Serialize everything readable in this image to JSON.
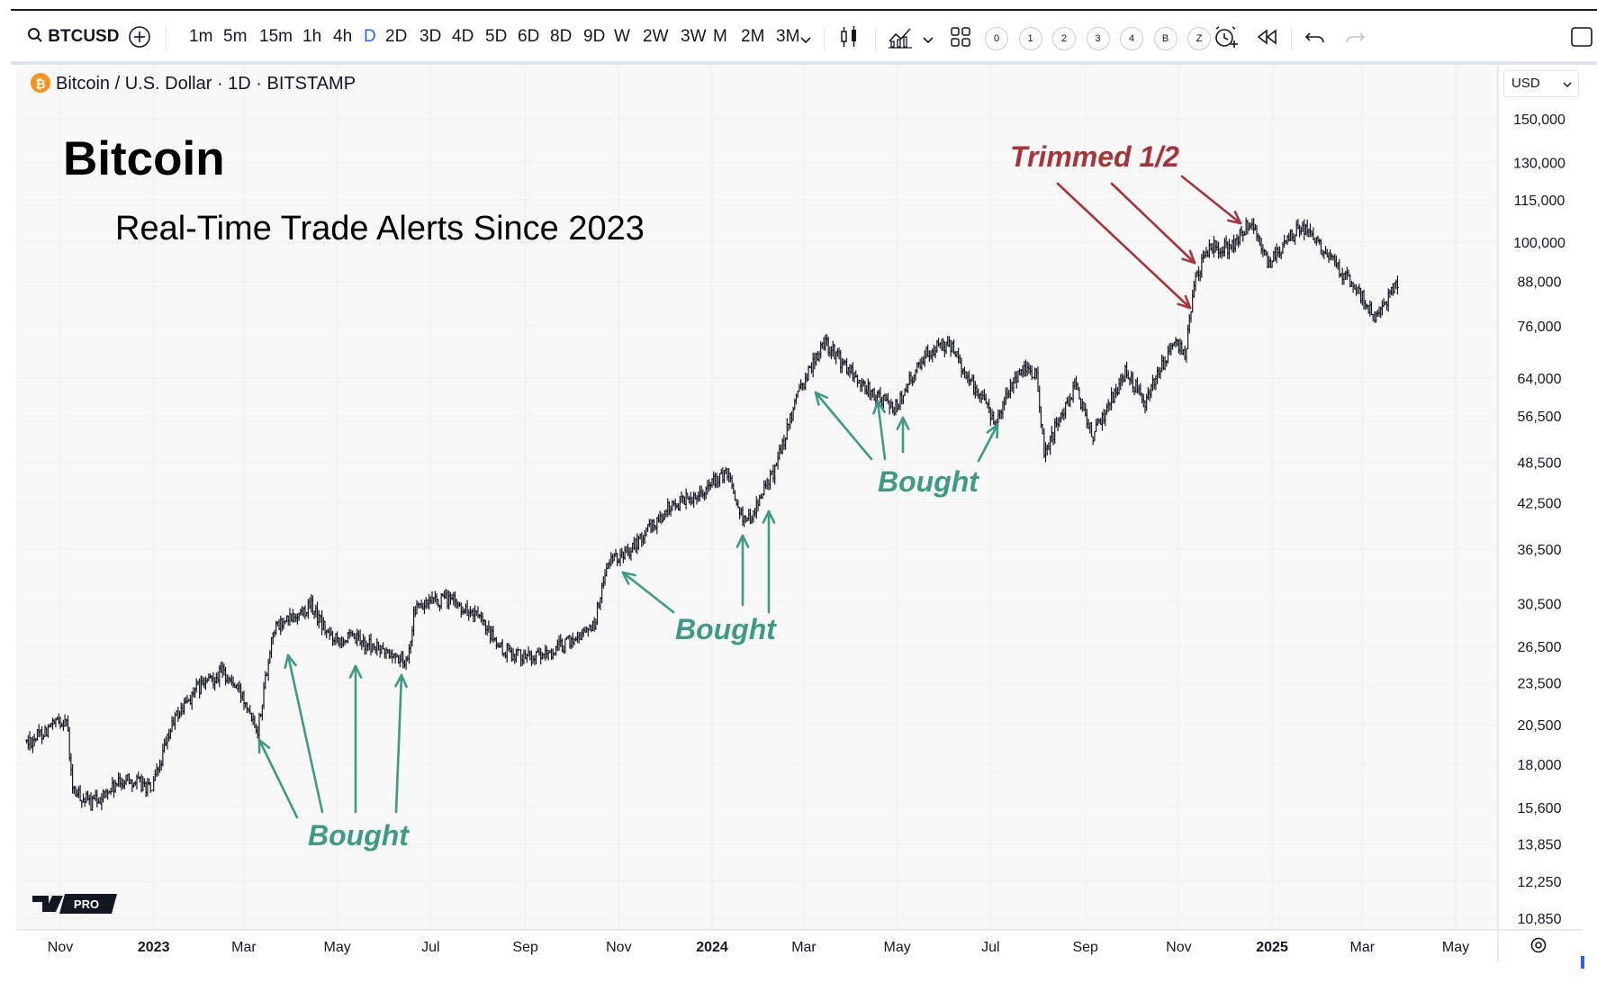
{
  "toolbar": {
    "symbol": "BTCUSD",
    "intervals": [
      "1m",
      "5m",
      "15m",
      "1h",
      "4h",
      "D",
      "2D",
      "3D",
      "4D",
      "5D",
      "6D",
      "8D",
      "9D",
      "W",
      "2W",
      "3W",
      "M",
      "2M",
      "3M"
    ],
    "active_interval": "D",
    "layout_slots": [
      "0",
      "1",
      "2",
      "3",
      "4",
      "B",
      "Z"
    ]
  },
  "legend": {
    "text": "Bitcoin / U.S. Dollar · 1D · BITSTAMP",
    "icon_glyph": "₿"
  },
  "currency_select": "USD",
  "branding": "PRO",
  "colors": {
    "candles": "#131722",
    "bought": "#3e9b83",
    "trimmed": "#a7343a",
    "bitcoin_orange": "#f7931a"
  },
  "chart_data": {
    "type": "line",
    "title": "Bitcoin",
    "subtitle": "Real-Time Trade Alerts Since 2023",
    "y_scale": "log",
    "ylim": [
      10000,
      160000
    ],
    "y_ticks": [
      150000,
      130000,
      115000,
      100000,
      88000,
      76000,
      64000,
      56500,
      48500,
      42500,
      36500,
      30500,
      26500,
      23500,
      20500,
      18000,
      15600,
      13850,
      12250,
      10850
    ],
    "y_tick_labels": [
      "150,000",
      "130,000",
      "115,000",
      "100,000",
      "88,000",
      "76,000",
      "64,000",
      "56,500",
      "48,500",
      "42,500",
      "36,500",
      "30,500",
      "26,500",
      "23,500",
      "20,500",
      "18,000",
      "15,600",
      "13,850",
      "12,250",
      "10,850"
    ],
    "x_ticks": [
      {
        "date": "2022-11-01",
        "label": "Nov",
        "bold": false
      },
      {
        "date": "2023-01-01",
        "label": "2023",
        "bold": true
      },
      {
        "date": "2023-03-01",
        "label": "Mar",
        "bold": false
      },
      {
        "date": "2023-05-01",
        "label": "May",
        "bold": false
      },
      {
        "date": "2023-07-01",
        "label": "Jul",
        "bold": false
      },
      {
        "date": "2023-09-01",
        "label": "Sep",
        "bold": false
      },
      {
        "date": "2023-11-01",
        "label": "Nov",
        "bold": false
      },
      {
        "date": "2024-01-01",
        "label": "2024",
        "bold": true
      },
      {
        "date": "2024-03-01",
        "label": "Mar",
        "bold": false
      },
      {
        "date": "2024-05-01",
        "label": "May",
        "bold": false
      },
      {
        "date": "2024-07-01",
        "label": "Jul",
        "bold": false
      },
      {
        "date": "2024-09-01",
        "label": "Sep",
        "bold": false
      },
      {
        "date": "2024-11-01",
        "label": "Nov",
        "bold": false
      },
      {
        "date": "2025-01-01",
        "label": "2025",
        "bold": true
      },
      {
        "date": "2025-03-01",
        "label": "Mar",
        "bold": false
      },
      {
        "date": "2025-05-01",
        "label": "May",
        "bold": false
      }
    ],
    "grid": true,
    "series": [
      {
        "x": [
          "2022-10-10",
          "2022-10-25",
          "2022-11-05",
          "2022-11-09",
          "2022-11-21",
          "2022-12-15",
          "2022-12-31",
          "2023-01-14",
          "2023-01-29",
          "2023-02-15",
          "2023-03-02",
          "2023-03-10",
          "2023-03-20",
          "2023-04-14",
          "2023-04-25",
          "2023-05-15",
          "2023-06-15",
          "2023-06-21",
          "2023-07-13",
          "2023-07-31",
          "2023-08-17",
          "2023-09-11",
          "2023-10-01",
          "2023-10-16",
          "2023-10-24",
          "2023-11-10",
          "2023-12-05",
          "2023-12-20",
          "2024-01-11",
          "2024-01-23",
          "2024-02-10",
          "2024-02-28",
          "2024-03-14",
          "2024-04-01",
          "2024-04-13",
          "2024-04-30",
          "2024-05-20",
          "2024-06-05",
          "2024-06-24",
          "2024-07-05",
          "2024-07-20",
          "2024-07-31",
          "2024-08-05",
          "2024-08-25",
          "2024-09-06",
          "2024-09-27",
          "2024-10-10",
          "2024-10-29",
          "2024-11-05",
          "2024-11-12",
          "2024-11-22",
          "2024-12-05",
          "2024-12-17",
          "2024-12-30",
          "2025-01-20",
          "2025-02-03",
          "2025-02-25",
          "2025-03-10",
          "2025-03-24"
        ],
        "y": [
          19300,
          20300,
          20900,
          16500,
          15800,
          17200,
          16550,
          20800,
          23000,
          24400,
          22300,
          20200,
          28000,
          30300,
          27500,
          27000,
          25200,
          30000,
          31000,
          29200,
          26100,
          25500,
          27000,
          28500,
          34500,
          36800,
          42000,
          43500,
          46800,
          39500,
          47000,
          62000,
          72000,
          65000,
          61200,
          58000,
          70000,
          71000,
          60000,
          55500,
          66000,
          65000,
          50000,
          62500,
          53000,
          65500,
          59500,
          72000,
          69000,
          89000,
          99000,
          98000,
          107000,
          93000,
          106000,
          97000,
          86000,
          78000,
          88000
        ]
      }
    ],
    "annotations": [
      {
        "text": "Bought",
        "kind": "bought"
      },
      {
        "text": "Bought",
        "kind": "bought"
      },
      {
        "text": "Bought",
        "kind": "bought"
      },
      {
        "text": "Trimmed 1/2",
        "kind": "trimmed"
      }
    ]
  }
}
